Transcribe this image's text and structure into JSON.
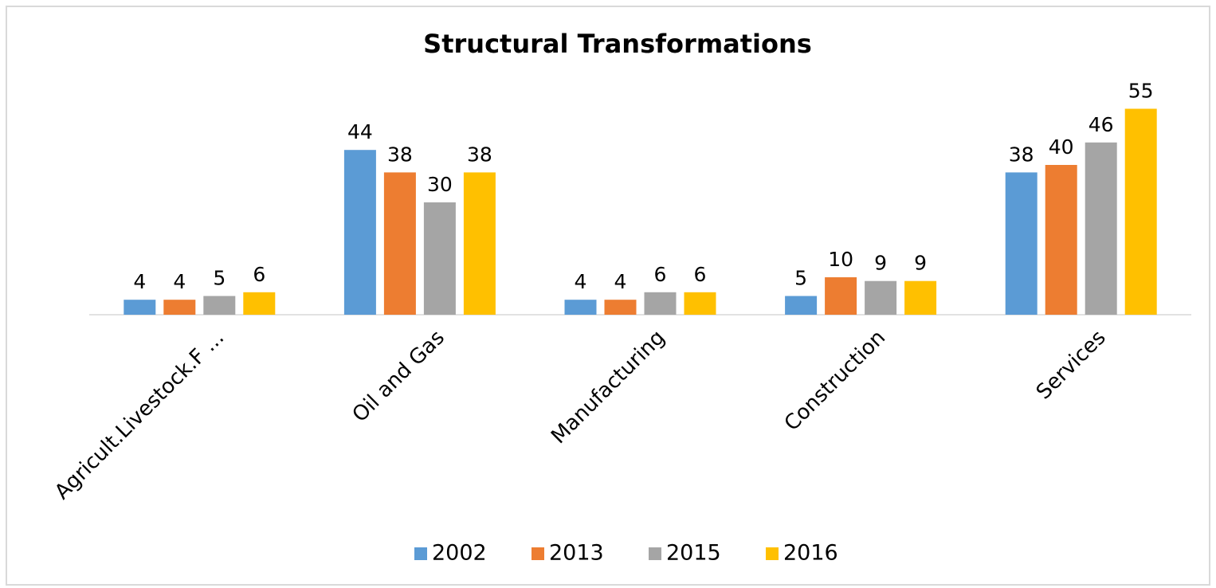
{
  "chart_data": {
    "type": "bar",
    "title": "Structural Transformations",
    "categories": [
      "Agricult.Livestock.F ...",
      "Oil and Gas",
      "Manufacturing",
      "Construction",
      "Services"
    ],
    "series": [
      {
        "name": "2002",
        "color": "#5b9bd5",
        "values": [
          4,
          44,
          4,
          5,
          38
        ]
      },
      {
        "name": "2013",
        "color": "#ed7d31",
        "values": [
          4,
          38,
          4,
          10,
          40
        ]
      },
      {
        "name": "2015",
        "color": "#a5a5a5",
        "values": [
          5,
          30,
          6,
          9,
          46
        ]
      },
      {
        "name": "2016",
        "color": "#ffc000",
        "values": [
          6,
          38,
          6,
          9,
          55
        ]
      }
    ],
    "legend": "bottom"
  }
}
